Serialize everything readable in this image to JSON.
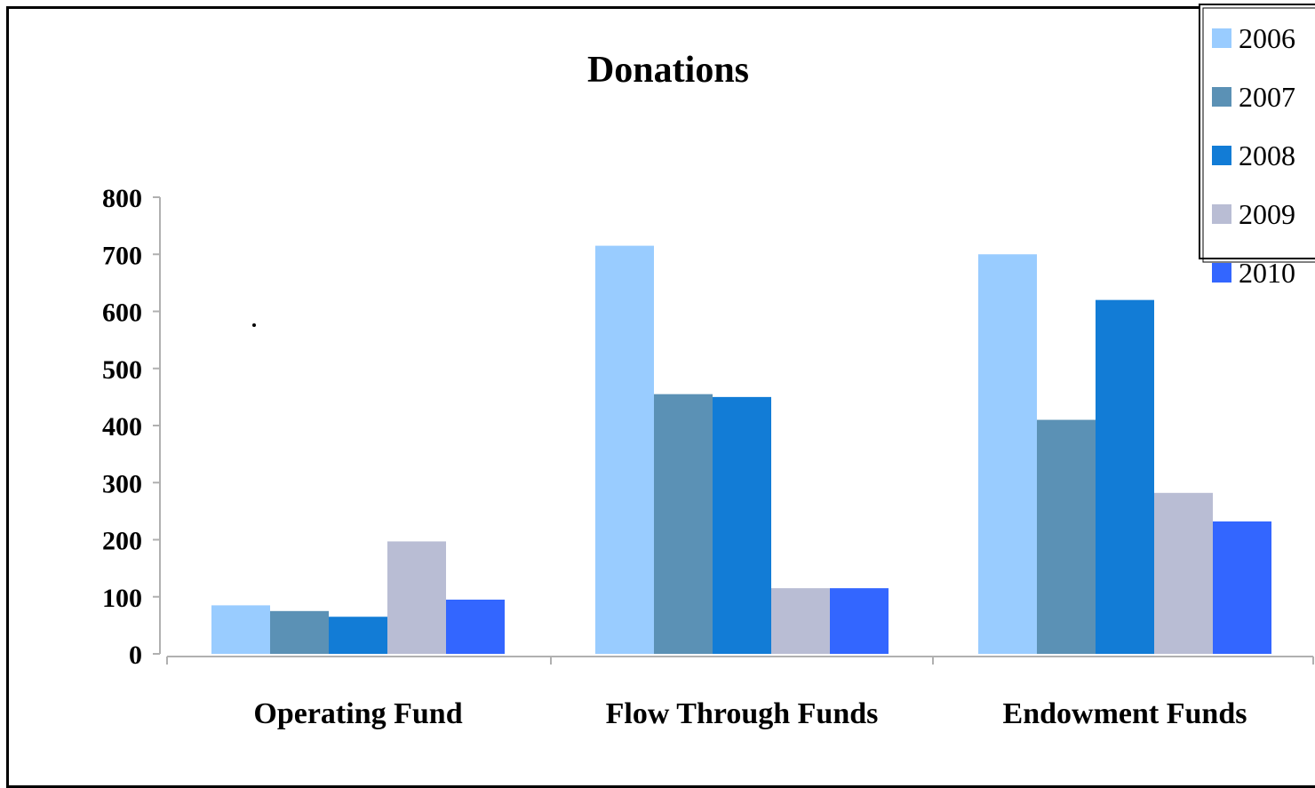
{
  "chart_data": {
    "type": "bar",
    "title": "Donations",
    "xlabel": "",
    "ylabel": "",
    "ylim": [
      0,
      800
    ],
    "yticks": [
      0,
      100,
      200,
      300,
      400,
      500,
      600,
      700,
      800
    ],
    "categories": [
      "Operating Fund",
      "Flow Through Funds",
      "Endowment Funds"
    ],
    "series": [
      {
        "name": "2006",
        "color": "#99ccff",
        "values": [
          85,
          715,
          700
        ]
      },
      {
        "name": "2007",
        "color": "#5b91b5",
        "values": [
          75,
          455,
          410
        ]
      },
      {
        "name": "2008",
        "color": "#127cd6",
        "values": [
          65,
          450,
          620
        ]
      },
      {
        "name": "2009",
        "color": "#b9bdd4",
        "values": [
          197,
          115,
          282
        ]
      },
      {
        "name": "2010",
        "color": "#3366ff",
        "values": [
          95,
          115,
          232
        ]
      }
    ],
    "grid": false,
    "legend_position": "top-right"
  }
}
